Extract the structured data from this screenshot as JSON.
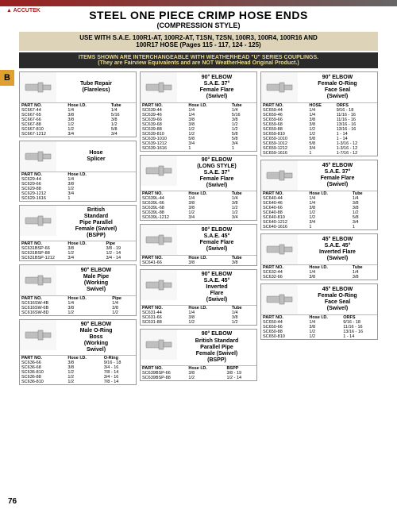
{
  "page_number": "76",
  "logo_text": "ACCUTEK",
  "title": "STEEL ONE PIECE CRIMP HOSE ENDS",
  "subtitle": "(COMPRESSION STYLE)",
  "tab": "B",
  "use_band_l1": "USE WITH S.A.E. 100R1-AT, 100R2-AT, T1SN, T2SN, 100R3, 100R4, 100R16 AND",
  "use_band_l2": "100R17 HOSE (Pages 115 - 117, 124 - 125)",
  "wh_band_l1": "ITEMS SHOWN ARE INTERCHANGEABLE WITH WEATHERHEAD \"U\" SERIES COUPLINGS.",
  "wh_band_l2": "(They are Fairview Equivalents and are NOT WeatherHead Original Product.)",
  "hdr": {
    "part": "PART NO.",
    "hose": "Hose I.D.",
    "tube": "Tube",
    "pipe": "Pipe",
    "oring": "O-Ring",
    "orfs": "ORFS",
    "bspp": "BSPP",
    "hose2": "HOSE"
  },
  "blocks": {
    "tube_repair": {
      "name": "Tube Repair\n(Flareless)",
      "cols": [
        "part",
        "hose",
        "tube"
      ],
      "rows": [
        [
          "SC667-44",
          "1/4",
          "1/4"
        ],
        [
          "SC667-65",
          "3/8",
          "5/16"
        ],
        [
          "SC667-66",
          "3/8",
          "3/8"
        ],
        [
          "SC667-88",
          "1/2",
          "1/2"
        ],
        [
          "SC667-810",
          "1/2",
          "5/8"
        ],
        [
          "SC667-1212",
          "3/4",
          "3/4"
        ]
      ]
    },
    "hose_splicer": {
      "name": "Hose\nSplicer",
      "cols": [
        "part",
        "hose"
      ],
      "rows": [
        [
          "SC629-44",
          "1/4"
        ],
        [
          "SC629-66",
          "3/8"
        ],
        [
          "SC629-88",
          "1/2"
        ],
        [
          "SC629-1212",
          "3/4"
        ],
        [
          "SC629-1616",
          "1"
        ]
      ]
    },
    "bspp": {
      "name": "British\nStandard\nPipe Parallel\nFemale (Swivel)\n(BSPP)",
      "cols": [
        "part",
        "hose",
        "pipe"
      ],
      "rows": [
        [
          "SC631BSP-66",
          "3/8",
          "3/8 - 19"
        ],
        [
          "SC631BSP-88",
          "1/2",
          "1/2 - 14"
        ],
        [
          "SC631BSP-1212",
          "3/4",
          "3/4 - 14"
        ]
      ]
    },
    "male_pipe_90": {
      "name": "90° ELBOW\nMale Pipe\n(Working\nSwivel)",
      "cols": [
        "part",
        "hose",
        "pipe"
      ],
      "rows": [
        [
          "SC616SW-4B",
          "1/4",
          "1/4"
        ],
        [
          "SC616SW-6B",
          "3/8",
          "3/8"
        ],
        [
          "SC616SW-8D",
          "1/2",
          "1/2"
        ]
      ]
    },
    "male_oring_90": {
      "name": "90° ELBOW\nMale O-Ring\nBoss\n(Working\nSwivel)",
      "cols": [
        "part",
        "hose",
        "oring"
      ],
      "rows": [
        [
          "SC636-66",
          "3/8",
          "9/16 - 18"
        ],
        [
          "SC636-68",
          "3/8",
          "3/4 - 16"
        ],
        [
          "SC636-810",
          "1/2",
          "7/8 - 14"
        ],
        [
          "SC636-88",
          "1/2",
          "3/4 - 16"
        ],
        [
          "SC636-810",
          "1/2",
          "7/8 - 14"
        ]
      ]
    },
    "ff37_90": {
      "name": "90° ELBOW\nS.A.E. 37°\nFemale Flare\n(Swivel)",
      "cols": [
        "part",
        "hose",
        "tube"
      ],
      "rows": [
        [
          "SC639-44",
          "1/4",
          "1/4"
        ],
        [
          "SC639-46",
          "1/4",
          "5/16"
        ],
        [
          "SC639-66",
          "3/8",
          "3/8"
        ],
        [
          "SC639-68",
          "3/8",
          "1/2"
        ],
        [
          "SC639-88",
          "1/2",
          "1/2"
        ],
        [
          "SC639-810",
          "1/2",
          "5/8"
        ],
        [
          "SC639-1010",
          "5/8",
          "5/8"
        ],
        [
          "SC639-1212",
          "3/4",
          "3/4"
        ],
        [
          "SC639-1616",
          "1",
          "1"
        ]
      ]
    },
    "ff37_90_long": {
      "name": "90° ELBOW\n(LONG STYLE)\nS.A.E. 37°\nFemale Flare\n(Swivel)",
      "cols": [
        "part",
        "hose",
        "tube"
      ],
      "rows": [
        [
          "SC639L-44",
          "1/4",
          "1/4"
        ],
        [
          "SC639L-66",
          "3/8",
          "3/8"
        ],
        [
          "SC639L-68",
          "3/8",
          "1/2"
        ],
        [
          "SC639L-88",
          "1/2",
          "1/2"
        ],
        [
          "SC639L-1212",
          "3/4",
          "3/4"
        ]
      ]
    },
    "ff45_90": {
      "name": "90° ELBOW\nS.A.E. 45°\nFemale Flare\n(Swivel)",
      "cols": [
        "part",
        "hose",
        "tube"
      ],
      "rows": [
        [
          "SC641-66",
          "3/8",
          "3/8"
        ]
      ]
    },
    "inv45_90": {
      "name": "90° ELBOW\nS.A.E. 45°\nInverted\nFlare\n(Swivel)",
      "cols": [
        "part",
        "hose",
        "tube"
      ],
      "rows": [
        [
          "SC631-44",
          "1/4",
          "1/4"
        ],
        [
          "SC631-66",
          "3/8",
          "3/8"
        ],
        [
          "SC631-88",
          "1/2",
          "1/2"
        ]
      ]
    },
    "bspp_90": {
      "name": "90° ELBOW\nBritish Standard\nParallel Pipe\nFemale (Swivel)\n(BSPP)",
      "cols": [
        "part",
        "hose",
        "bspp"
      ],
      "rows": [
        [
          "SC639BSP-66",
          "3/8",
          "3/8 - 19"
        ],
        [
          "SC639BSP-88",
          "1/2",
          "1/2 - 14"
        ]
      ]
    },
    "face_90": {
      "name": "90° ELBOW\nFemale O-Ring\nFace Seal\n(Swivel)",
      "cols": [
        "part",
        "hose2",
        "orfs"
      ],
      "rows": [
        [
          "SC659-44",
          "1/4",
          "9/16 - 18"
        ],
        [
          "SC659-46",
          "1/4",
          "11/16 - 16"
        ],
        [
          "SC659-66",
          "3/8",
          "11/16 - 16"
        ],
        [
          "SC659-68",
          "3/8",
          "13/16 - 16"
        ],
        [
          "SC659-88",
          "1/2",
          "13/16 - 16"
        ],
        [
          "SC659-810",
          "1/2",
          "1 - 14"
        ],
        [
          "SC659-1010",
          "5/8",
          "1 - 14"
        ],
        [
          "SC659-1012",
          "5/8",
          "1-3/16 - 12"
        ],
        [
          "SC659-1212",
          "3/4",
          "1-3/16 - 12"
        ],
        [
          "SC659-1616",
          "1",
          "1-7/16 - 12"
        ]
      ]
    },
    "ff37_45": {
      "name": "45° ELBOW\nS.A.E. 37°\nFemale Flare\n(Swivel)",
      "cols": [
        "part",
        "hose",
        "tube"
      ],
      "rows": [
        [
          "SC640-44",
          "1/4",
          "1/4"
        ],
        [
          "SC640-46",
          "1/4",
          "3/8"
        ],
        [
          "SC640-66",
          "3/8",
          "3/8"
        ],
        [
          "SC640-88",
          "1/2",
          "1/2"
        ],
        [
          "SC640-810",
          "1/2",
          "5/8"
        ],
        [
          "SC640-1212",
          "3/4",
          "3/4"
        ],
        [
          "SC640-1616",
          "1",
          "1"
        ]
      ]
    },
    "inv45_45": {
      "name": "45° ELBOW\nS.A.E. 45°\nInverted Flare\n(Swivel)",
      "cols": [
        "part",
        "hose",
        "tube"
      ],
      "rows": [
        [
          "SC632-44",
          "1/4",
          "1/4"
        ],
        [
          "SC632-66",
          "3/8",
          "3/8"
        ]
      ]
    },
    "face_45": {
      "name": "45° ELBOW\nFemale O-Ring\nFace Seal\n(Swivel)",
      "cols": [
        "part",
        "hose",
        "orfs"
      ],
      "rows": [
        [
          "SC650-44",
          "1/4",
          "9/16 - 18"
        ],
        [
          "SC650-66",
          "3/8",
          "11/16 - 16"
        ],
        [
          "SC650-88",
          "1/2",
          "13/16 - 16"
        ],
        [
          "SC650-810",
          "1/2",
          "1 - 14"
        ]
      ]
    }
  }
}
